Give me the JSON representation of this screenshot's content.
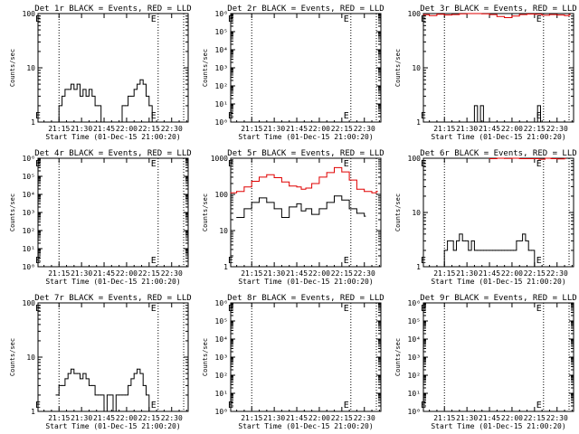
{
  "figure": {
    "xlabel": "Start Time (01-Dec-15 21:00:20)",
    "ylabel": "Counts/sec",
    "xticks": [
      "21:15",
      "21:30",
      "21:45",
      "22:00",
      "22:15",
      "22:30"
    ],
    "dotted_lines_at": [
      "21:15",
      "22:21",
      "22:38"
    ],
    "event_markers": [
      {
        "at": "21:01",
        "label": "E"
      },
      {
        "at": "22:18",
        "label": "E"
      }
    ],
    "colors": {
      "events": "#000000",
      "lld": "#e00000"
    }
  },
  "chart_data": [
    {
      "type": "line",
      "title": "Det 1r BLACK = Events, RED = LLD",
      "ylim": [
        1,
        100
      ],
      "scale": "log",
      "yticks": [
        "1",
        "10",
        "100"
      ],
      "series": [
        {
          "name": "Events",
          "color": "#000000",
          "x": [
            "21:13",
            "21:15",
            "21:17",
            "21:19",
            "21:21",
            "21:23",
            "21:25",
            "21:27",
            "21:29",
            "21:31",
            "21:33",
            "21:35",
            "21:37",
            "21:39",
            "21:41",
            "21:43",
            "21:45",
            "21:47",
            "21:49",
            "21:51",
            "21:53",
            "21:55",
            "21:57",
            "21:59",
            "22:01",
            "22:03",
            "22:05",
            "22:07",
            "22:09",
            "22:11",
            "22:13",
            "22:15",
            "22:17",
            "22:19"
          ],
          "y": [
            1,
            2,
            3,
            4,
            4,
            5,
            4,
            5,
            3,
            4,
            3,
            4,
            3,
            2,
            2,
            1,
            1,
            1,
            1,
            1,
            1,
            1,
            2,
            2,
            3,
            3,
            4,
            5,
            6,
            5,
            3,
            2,
            1,
            1
          ]
        }
      ]
    },
    {
      "type": "line",
      "title": "Det 2r BLACK = Events, RED = LLD",
      "ylim": [
        1,
        1000000
      ],
      "scale": "log",
      "yticks": [
        "10⁰",
        "10¹",
        "10²",
        "10³",
        "10⁴",
        "10⁵",
        "10⁶"
      ],
      "series": []
    },
    {
      "type": "line",
      "title": "Det 3r BLACK = Events, RED = LLD",
      "ylim": [
        1,
        100
      ],
      "scale": "log",
      "yticks": [
        "1",
        "10",
        "100"
      ],
      "series": [
        {
          "name": "Events",
          "color": "#000000",
          "x": [
            "21:33",
            "21:35",
            "21:37",
            "21:39",
            "21:41",
            "22:15",
            "22:17",
            "22:19"
          ],
          "y": [
            1,
            2,
            1,
            2,
            1,
            1,
            2,
            1
          ]
        },
        {
          "name": "LLD",
          "color": "#e00000",
          "x": [
            "21:01",
            "21:05",
            "21:10",
            "21:15",
            "21:20",
            "21:25",
            "21:30",
            "21:35",
            "21:40",
            "21:45",
            "21:50",
            "21:55",
            "22:00",
            "22:05",
            "22:10",
            "22:15",
            "22:20",
            "22:25",
            "22:30",
            "22:35",
            "22:38"
          ],
          "y": [
            95,
            92,
            97,
            94,
            96,
            99,
            100,
            100,
            99,
            96,
            88,
            84,
            90,
            96,
            98,
            97,
            93,
            96,
            94,
            92,
            95
          ]
        }
      ]
    },
    {
      "type": "line",
      "title": "Det 4r BLACK = Events, RED = LLD",
      "ylim": [
        1,
        1000000
      ],
      "scale": "log",
      "yticks": [
        "10⁰",
        "10¹",
        "10²",
        "10³",
        "10⁴",
        "10⁵",
        "10⁶"
      ],
      "series": []
    },
    {
      "type": "line",
      "title": "Det 5r BLACK = Events, RED = LLD",
      "ylim": [
        1,
        1000
      ],
      "scale": "log",
      "yticks": [
        "1",
        "10",
        "100",
        "1000"
      ],
      "series": [
        {
          "name": "Events",
          "color": "#000000",
          "x": [
            "21:05",
            "21:10",
            "21:15",
            "21:20",
            "21:25",
            "21:30",
            "21:35",
            "21:40",
            "21:45",
            "21:48",
            "21:51",
            "21:55",
            "22:00",
            "22:05",
            "22:10",
            "22:15",
            "22:20",
            "22:25",
            "22:30"
          ],
          "y": [
            23,
            40,
            60,
            80,
            60,
            40,
            23,
            45,
            55,
            35,
            40,
            28,
            40,
            60,
            90,
            70,
            40,
            30,
            25
          ]
        },
        {
          "name": "LLD",
          "color": "#e00000",
          "x": [
            "21:01",
            "21:05",
            "21:10",
            "21:15",
            "21:20",
            "21:25",
            "21:30",
            "21:35",
            "21:40",
            "21:45",
            "21:48",
            "21:51",
            "21:55",
            "22:00",
            "22:05",
            "22:10",
            "22:15",
            "22:20",
            "22:25",
            "22:30",
            "22:35",
            "22:38"
          ],
          "y": [
            110,
            120,
            160,
            230,
            300,
            350,
            290,
            220,
            170,
            160,
            140,
            150,
            200,
            300,
            400,
            550,
            420,
            250,
            140,
            120,
            110,
            120
          ]
        }
      ]
    },
    {
      "type": "line",
      "title": "Det 6r BLACK = Events, RED = LLD",
      "ylim": [
        1,
        100
      ],
      "scale": "log",
      "yticks": [
        "1",
        "10",
        "100"
      ],
      "series": [
        {
          "name": "Events",
          "color": "#000000",
          "x": [
            "21:13",
            "21:15",
            "21:17",
            "21:19",
            "21:21",
            "21:23",
            "21:25",
            "21:27",
            "21:29",
            "21:31",
            "21:33",
            "21:35",
            "21:37",
            "21:39",
            "21:41",
            "21:43",
            "21:45",
            "21:47",
            "21:49",
            "21:51",
            "21:53",
            "21:55",
            "21:57",
            "21:59",
            "22:01",
            "22:03",
            "22:05",
            "22:07",
            "22:09",
            "22:11",
            "22:13",
            "22:15",
            "22:17"
          ],
          "y": [
            1,
            2,
            3,
            3,
            2,
            3,
            4,
            3,
            3,
            2,
            3,
            2,
            2,
            2,
            2,
            2,
            2,
            2,
            2,
            2,
            2,
            2,
            2,
            2,
            2,
            3,
            3,
            4,
            3,
            2,
            2,
            1,
            1
          ]
        },
        {
          "name": "LLD",
          "color": "#e00000",
          "x": [
            "21:45",
            "21:50",
            "21:55",
            "22:00",
            "22:05",
            "22:18",
            "22:22",
            "22:26",
            "22:30",
            "22:35"
          ],
          "y": [
            98,
            100,
            99,
            100,
            98,
            96,
            100,
            98,
            97,
            99
          ]
        }
      ]
    },
    {
      "type": "line",
      "title": "Det 7r BLACK = Events, RED = LLD",
      "ylim": [
        1,
        100
      ],
      "scale": "log",
      "yticks": [
        "1",
        "10",
        "100"
      ],
      "series": [
        {
          "name": "Events",
          "color": "#000000",
          "x": [
            "21:13",
            "21:15",
            "21:17",
            "21:19",
            "21:21",
            "21:23",
            "21:25",
            "21:27",
            "21:29",
            "21:31",
            "21:33",
            "21:35",
            "21:37",
            "21:39",
            "21:41",
            "21:43",
            "21:45",
            "21:47",
            "21:49",
            "21:51",
            "21:53",
            "21:55",
            "21:57",
            "21:59",
            "22:01",
            "22:03",
            "22:05",
            "22:07",
            "22:09",
            "22:11",
            "22:13",
            "22:15",
            "22:17"
          ],
          "y": [
            2,
            3,
            3,
            4,
            5,
            6,
            5,
            5,
            4,
            5,
            4,
            3,
            3,
            2,
            2,
            2,
            1,
            2,
            2,
            1,
            2,
            2,
            2,
            2,
            3,
            4,
            5,
            6,
            5,
            3,
            2,
            1,
            1
          ]
        }
      ]
    },
    {
      "type": "line",
      "title": "Det 8r BLACK = Events, RED = LLD",
      "ylim": [
        1,
        1000000
      ],
      "scale": "log",
      "yticks": [
        "10⁰",
        "10¹",
        "10²",
        "10³",
        "10⁴",
        "10⁵",
        "10⁶"
      ],
      "series": []
    },
    {
      "type": "line",
      "title": "Det 9r BLACK = Events, RED = LLD",
      "ylim": [
        1,
        1000000
      ],
      "scale": "log",
      "yticks": [
        "10⁰",
        "10¹",
        "10²",
        "10³",
        "10⁴",
        "10⁵",
        "10⁶"
      ],
      "series": []
    }
  ]
}
